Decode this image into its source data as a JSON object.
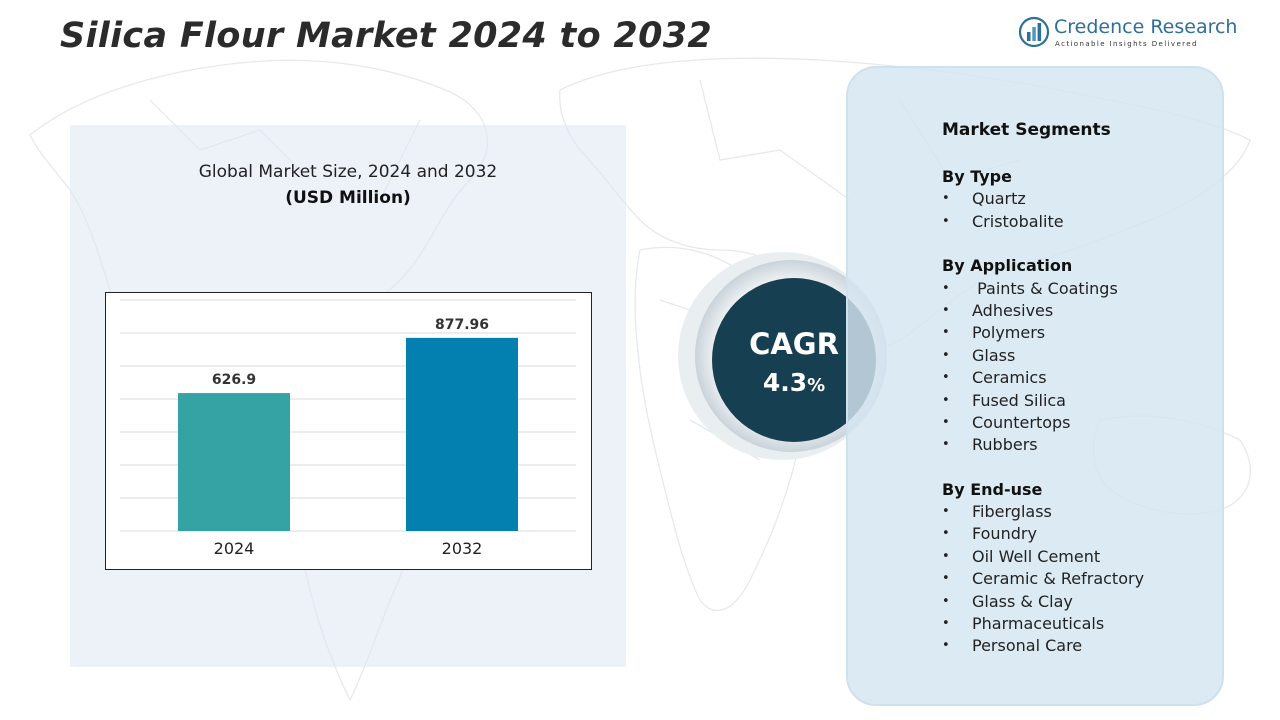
{
  "title": "Silica Flour Market 2024 to 2032",
  "logo": {
    "name": "Credence Research",
    "tagline": "Actionable Insights Delivered"
  },
  "chart_data": {
    "type": "bar",
    "title": "Global Market Size, 2024 and 2032",
    "subtitle": "(USD Million)",
    "categories": [
      "2024",
      "2032"
    ],
    "values": [
      626.9,
      877.96
    ],
    "value_labels": [
      "626.9",
      "877.96"
    ],
    "bar_colors": [
      "#35a2a3",
      "#0480b0"
    ],
    "ylim": [
      0,
      1050
    ],
    "grid": true
  },
  "cagr": {
    "label": "CAGR",
    "value": "4.3",
    "unit": "%"
  },
  "segments": {
    "heading": "Market Segments",
    "groups": [
      {
        "title": "By Type",
        "items": [
          "Quartz",
          "Cristobalite"
        ]
      },
      {
        "title": "By Application",
        "items": [
          " Paints & Coatings",
          "Adhesives",
          "Polymers",
          "Glass",
          "Ceramics",
          "Fused Silica",
          "Countertops",
          "Rubbers"
        ]
      },
      {
        "title": "By End-use",
        "items": [
          "Fiberglass",
          "Foundry",
          "Oil Well Cement",
          "Ceramic & Refractory",
          "Glass & Clay",
          "Pharmaceuticals",
          "Personal Care"
        ]
      }
    ]
  },
  "colors": {
    "cagr_circle": "#163f51",
    "panel_bg": "#d4e5f0",
    "brand": "#2e6f9a"
  }
}
